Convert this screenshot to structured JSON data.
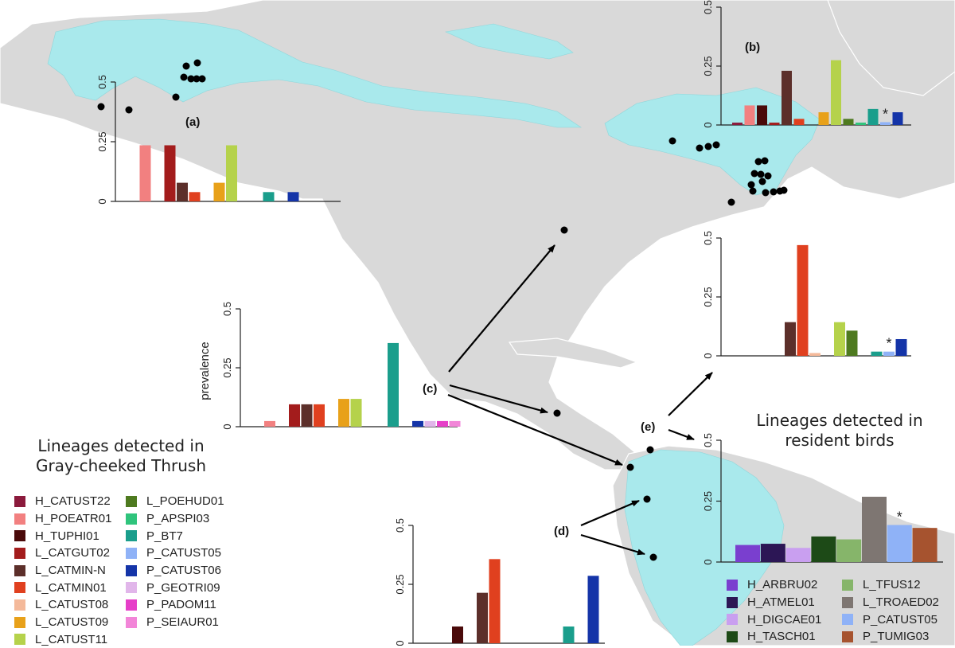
{
  "colors": {
    "H_CATUST22": "#8b1a3c",
    "H_POEATR01": "#f28080",
    "H_TUPHI01": "#4a0a0a",
    "L_CATGUT02": "#a31c1c",
    "L_CATMIN-N": "#5c2f2a",
    "L_CATMIN01": "#e0401f",
    "L_CATUST08": "#f4b99a",
    "L_CATUST09": "#e8a11a",
    "L_CATUST11": "#b5d24b",
    "L_POEHUD01": "#4e7a1f",
    "P_APSPI03": "#2fc47c",
    "P_BT7": "#1a9e8c",
    "P_CATUST05": "#8fb2f7",
    "P_CATUST06": "#1434a8",
    "P_GEOTRI09": "#e1b6ea",
    "P_PADOM11": "#e63ec8",
    "P_SEIAUR01": "#f285d8",
    "H_ARBRU02": "#7a3fcf",
    "H_ATMEL01": "#2c1655",
    "H_DIGCAE01": "#c99ff0",
    "H_TASCH01": "#1d4a17",
    "L_TFUS12": "#86b56a",
    "L_TROAED02": "#7e7672",
    "P_TUMIG03": "#a6532f"
  },
  "legend_gct": {
    "title_line1": "Lineages detected in",
    "title_line2": "Gray-cheeked Thrush",
    "col1": [
      "H_CATUST22",
      "H_POEATR01",
      "H_TUPHI01",
      "L_CATGUT02",
      "L_CATMIN-N",
      "L_CATMIN01",
      "L_CATUST08",
      "L_CATUST09",
      "L_CATUST11"
    ],
    "col2": [
      "L_POEHUD01",
      "P_APSPI03",
      "P_BT7",
      "P_CATUST05",
      "P_CATUST06",
      "P_GEOTRI09",
      "P_PADOM11",
      "P_SEIAUR01"
    ]
  },
  "legend_res": {
    "title_line1": "Lineages detected in",
    "title_line2": "resident birds",
    "col1": [
      "H_ARBRU02",
      "H_ATMEL01",
      "H_DIGCAE01",
      "H_TASCH01"
    ],
    "col2": [
      "L_TFUS12",
      "L_TROAED02",
      "P_CATUST05",
      "P_TUMIG03"
    ]
  },
  "labels": {
    "c": "(c)",
    "d": "(d)",
    "e": "(e)"
  },
  "chart_data": [
    {
      "id": "a",
      "label": "(a)",
      "type": "bar",
      "ylim": [
        0,
        0.5
      ],
      "ytick_labels": [
        "0",
        "0.25",
        "0.5"
      ],
      "bars": [
        {
          "lineage": "H_POEATR01",
          "value": 0.235
        },
        {
          "lineage": "L_CATGUT02",
          "value": 0.235
        },
        {
          "lineage": "L_CATMIN-N",
          "value": 0.078
        },
        {
          "lineage": "L_CATMIN01",
          "value": 0.039
        },
        {
          "lineage": "L_CATUST09",
          "value": 0.078
        },
        {
          "lineage": "L_CATUST11",
          "value": 0.235
        },
        {
          "lineage": "P_BT7",
          "value": 0.039
        },
        {
          "lineage": "P_CATUST06",
          "value": 0.039
        }
      ]
    },
    {
      "id": "b",
      "label": "(b)",
      "type": "bar",
      "ylim": [
        0,
        0.5
      ],
      "ytick_labels": [
        "0",
        "0.25",
        "0.5"
      ],
      "bars": [
        {
          "lineage": "H_CATUST22",
          "value": 0.01
        },
        {
          "lineage": "H_POEATR01",
          "value": 0.083
        },
        {
          "lineage": "H_TUPHI01",
          "value": 0.083
        },
        {
          "lineage": "L_CATGUT02",
          "value": 0.01
        },
        {
          "lineage": "L_CATMIN-N",
          "value": 0.23
        },
        {
          "lineage": "L_CATMIN01",
          "value": 0.026
        },
        {
          "lineage": "L_CATUST09",
          "value": 0.054
        },
        {
          "lineage": "L_CATUST11",
          "value": 0.275
        },
        {
          "lineage": "L_POEHUD01",
          "value": 0.026
        },
        {
          "lineage": "P_APSPI03",
          "value": 0.01
        },
        {
          "lineage": "P_BT7",
          "value": 0.068
        },
        {
          "lineage": "P_CATUST05",
          "value": 0.012,
          "marker": "*"
        },
        {
          "lineage": "P_CATUST06",
          "value": 0.054
        }
      ]
    },
    {
      "id": "c",
      "label": "",
      "type": "bar",
      "ylim": [
        0,
        0.5
      ],
      "ylabel": "prevalence",
      "ytick_labels": [
        "0",
        "0.25",
        "0.5"
      ],
      "bars": [
        {
          "lineage": "H_POEATR01",
          "value": 0.024
        },
        {
          "lineage": "L_CATGUT02",
          "value": 0.095
        },
        {
          "lineage": "L_CATMIN-N",
          "value": 0.095
        },
        {
          "lineage": "L_CATMIN01",
          "value": 0.095
        },
        {
          "lineage": "L_CATUST09",
          "value": 0.118
        },
        {
          "lineage": "L_CATUST11",
          "value": 0.118
        },
        {
          "lineage": "P_BT7",
          "value": 0.355
        },
        {
          "lineage": "P_CATUST06",
          "value": 0.024
        },
        {
          "lineage": "P_GEOTRI09",
          "value": 0.024
        },
        {
          "lineage": "P_PADOM11",
          "value": 0.024
        },
        {
          "lineage": "P_SEIAUR01",
          "value": 0.024
        }
      ]
    },
    {
      "id": "d",
      "label": "",
      "type": "bar",
      "ylim": [
        0,
        0.5
      ],
      "ytick_labels": [
        "0",
        "0.25",
        "0.5"
      ],
      "bars": [
        {
          "lineage": "H_TUPHI01",
          "value": 0.071
        },
        {
          "lineage": "L_CATMIN-N",
          "value": 0.214
        },
        {
          "lineage": "L_CATMIN01",
          "value": 0.357
        },
        {
          "lineage": "P_BT7",
          "value": 0.071
        },
        {
          "lineage": "P_CATUST06",
          "value": 0.286
        }
      ]
    },
    {
      "id": "e",
      "label": "",
      "type": "bar",
      "ylim": [
        0,
        0.5
      ],
      "ytick_labels": [
        "0",
        "0.25",
        "0.5"
      ],
      "bars": [
        {
          "lineage": "L_CATMIN-N",
          "value": 0.143
        },
        {
          "lineage": "L_CATMIN01",
          "value": 0.47
        },
        {
          "lineage": "L_CATUST08",
          "value": 0.012
        },
        {
          "lineage": "L_CATUST11",
          "value": 0.143
        },
        {
          "lineage": "L_POEHUD01",
          "value": 0.107
        },
        {
          "lineage": "P_BT7",
          "value": 0.018
        },
        {
          "lineage": "P_CATUST05",
          "value": 0.018,
          "marker": "*"
        },
        {
          "lineage": "P_CATUST06",
          "value": 0.071
        }
      ]
    },
    {
      "id": "res",
      "label": "",
      "type": "bar",
      "ylim": [
        0,
        0.5
      ],
      "ytick_labels": [
        "0",
        "0.25",
        "0.5"
      ],
      "bars": [
        {
          "lineage": "H_ARBRU02",
          "value": 0.07
        },
        {
          "lineage": "H_ATMEL01",
          "value": 0.075
        },
        {
          "lineage": "H_DIGCAE01",
          "value": 0.058
        },
        {
          "lineage": "H_TASCH01",
          "value": 0.105
        },
        {
          "lineage": "L_TFUS12",
          "value": 0.093
        },
        {
          "lineage": "L_TROAED02",
          "value": 0.268
        },
        {
          "lineage": "P_CATUST05",
          "value": 0.152,
          "marker": "*"
        },
        {
          "lineage": "P_TUMIG03",
          "value": 0.14
        }
      ]
    }
  ]
}
